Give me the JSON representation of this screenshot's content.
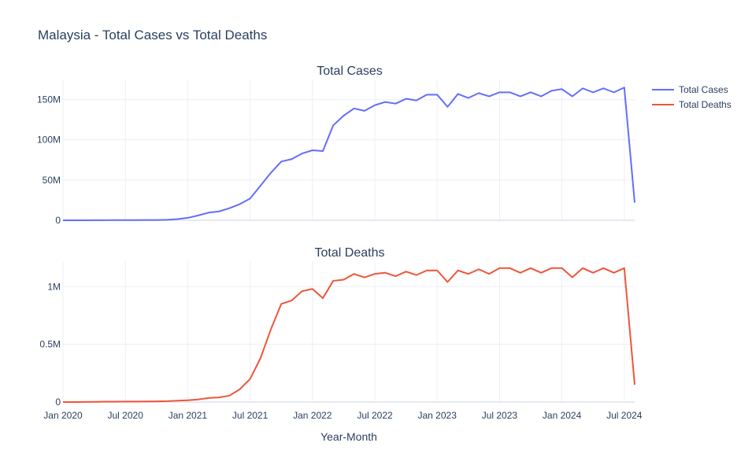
{
  "title": "Malaysia - Total Cases vs Total Deaths",
  "chart_data": {
    "type": "line",
    "xlabel": "Year-Month",
    "x_ticks": [
      "Jan 2020",
      "Jul 2020",
      "Jan 2021",
      "Jul 2021",
      "Jan 2022",
      "Jul 2022",
      "Jan 2023",
      "Jul 2023",
      "Jan 2024",
      "Jul 2024"
    ],
    "x_range": [
      "2020-01",
      "2024-08"
    ],
    "x": [
      "2020-01",
      "2020-02",
      "2020-03",
      "2020-04",
      "2020-05",
      "2020-06",
      "2020-07",
      "2020-08",
      "2020-09",
      "2020-10",
      "2020-11",
      "2020-12",
      "2021-01",
      "2021-02",
      "2021-03",
      "2021-04",
      "2021-05",
      "2021-06",
      "2021-07",
      "2021-08",
      "2021-09",
      "2021-10",
      "2021-11",
      "2021-12",
      "2022-01",
      "2022-02",
      "2022-03",
      "2022-04",
      "2022-05",
      "2022-06",
      "2022-07",
      "2022-08",
      "2022-09",
      "2022-10",
      "2022-11",
      "2022-12",
      "2023-01",
      "2023-02",
      "2023-03",
      "2023-04",
      "2023-05",
      "2023-06",
      "2023-07",
      "2023-08",
      "2023-09",
      "2023-10",
      "2023-11",
      "2023-12",
      "2024-01",
      "2024-02",
      "2024-03",
      "2024-04",
      "2024-05",
      "2024-06",
      "2024-07",
      "2024-08"
    ],
    "legend_position": "top-right",
    "subplots": [
      {
        "title": "Total Cases",
        "yrange": [
          0,
          175000000
        ],
        "yticks": [
          0,
          50000000,
          100000000,
          150000000
        ],
        "ytick_labels": [
          "0",
          "50M",
          "100M",
          "150M"
        ],
        "series": [
          {
            "name": "Total Cases",
            "color": "#636efa",
            "values": [
              0,
              0,
              50000,
              100000,
              150000,
              200000,
              250000,
              300000,
              350000,
              400000,
              600000,
              1500000,
              3000000,
              6000000,
              9500000,
              11000000,
              15000000,
              20000000,
              27000000,
              43000000,
              59000000,
              73000000,
              76000000,
              83000000,
              87000000,
              86000000,
              118000000,
              130000000,
              139000000,
              136000000,
              143000000,
              147000000,
              145000000,
              151000000,
              149000000,
              156000000,
              156000000,
              141000000,
              157000000,
              152000000,
              158000000,
              154000000,
              159000000,
              159000000,
              154000000,
              159000000,
              154000000,
              161000000,
              163000000,
              154000000,
              164000000,
              159000000,
              164000000,
              159000000,
              165000000,
              22000000
            ]
          }
        ]
      },
      {
        "title": "Total Deaths",
        "yrange": [
          0,
          1220000
        ],
        "yticks": [
          0,
          500000,
          1000000
        ],
        "ytick_labels": [
          "0",
          "0.5M",
          "1M"
        ],
        "series": [
          {
            "name": "Total Deaths",
            "color": "#ef553b",
            "values": [
              0,
              0,
              1000,
              2000,
              3000,
              3500,
              4000,
              4500,
              5000,
              6000,
              8000,
              12000,
              15000,
              22000,
              35000,
              40000,
              55000,
              110000,
              200000,
              380000,
              630000,
              850000,
              880000,
              960000,
              980000,
              900000,
              1050000,
              1060000,
              1110000,
              1080000,
              1110000,
              1120000,
              1090000,
              1130000,
              1100000,
              1140000,
              1140000,
              1040000,
              1140000,
              1110000,
              1150000,
              1110000,
              1160000,
              1160000,
              1120000,
              1160000,
              1120000,
              1160000,
              1160000,
              1080000,
              1160000,
              1120000,
              1160000,
              1120000,
              1160000,
              150000
            ]
          }
        ]
      }
    ]
  }
}
